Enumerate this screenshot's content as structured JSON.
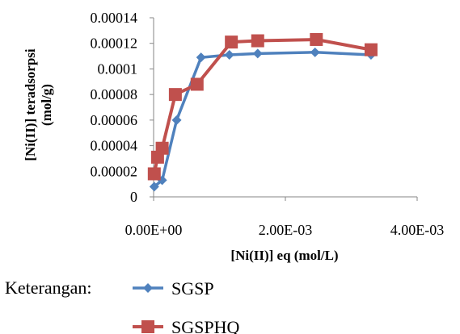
{
  "chart_data": {
    "type": "line",
    "title": "",
    "xlabel": "[Ni(II)] eq (mol/L)",
    "ylabel_lines": [
      "[Ni(II)] teradsorpsi",
      "(mol/g)"
    ],
    "xlim": [
      0,
      0.004
    ],
    "ylim": [
      0,
      0.00014
    ],
    "x_ticks": [
      0,
      0.002,
      0.004
    ],
    "x_tick_labels": [
      "0.00E+00",
      "2.00E-03",
      "4.00E-03"
    ],
    "y_ticks": [
      0,
      2e-05,
      4e-05,
      6e-05,
      8e-05,
      0.0001,
      0.00012,
      0.00014
    ],
    "y_tick_labels": [
      "0",
      "0.00002",
      "0.00004",
      "0.00006",
      "0.00008",
      "0.0001",
      "0.00012",
      "0.00014"
    ],
    "grid": false,
    "legend_prefix": "Keterangan:",
    "legend_position": "bottom",
    "series": [
      {
        "name": "SGSP",
        "color": "#4F81BD",
        "marker": "diamond",
        "x": [
          1e-05,
          0.00013,
          0.00035,
          0.00072,
          0.00115,
          0.00158,
          0.00245,
          0.0033
        ],
        "y": [
          8e-06,
          1.3e-05,
          6e-05,
          0.000109,
          0.000111,
          0.000112,
          0.000113,
          0.000111
        ]
      },
      {
        "name": "SGSPHQ",
        "color": "#C0504D",
        "marker": "square",
        "x": [
          1e-05,
          6e-05,
          0.00013,
          0.00033,
          0.00066,
          0.00118,
          0.00158,
          0.00247,
          0.0033
        ],
        "y": [
          1.8e-05,
          3.1e-05,
          3.8e-05,
          8e-05,
          8.8e-05,
          0.000121,
          0.000122,
          0.000123,
          0.000115
        ]
      }
    ]
  }
}
